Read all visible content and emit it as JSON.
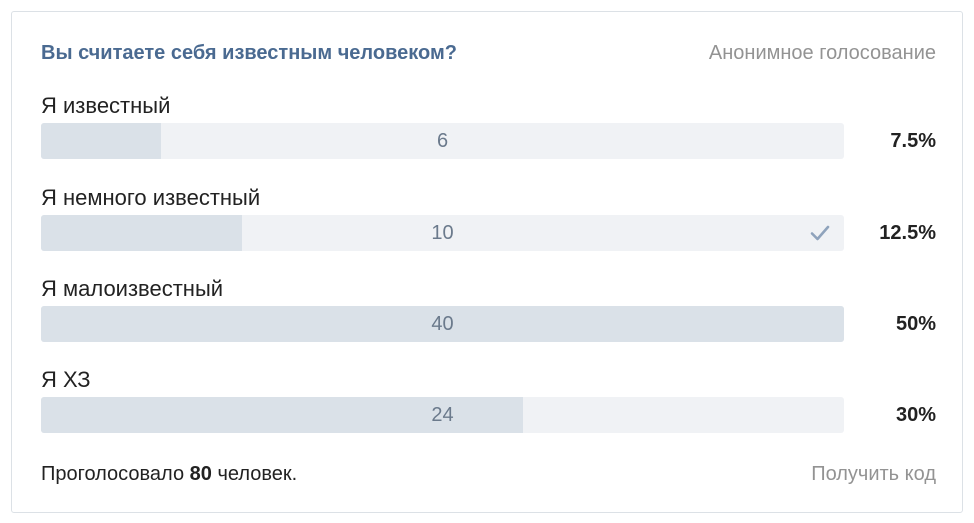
{
  "poll": {
    "question": "Вы считаете себя известным человеком?",
    "type": "Анонимное голосование",
    "options": [
      {
        "label": "Я известный",
        "count": "6",
        "percent": "7.5%",
        "fill": 0.15,
        "voted": false
      },
      {
        "label": "Я немного известный",
        "count": "10",
        "percent": "12.5%",
        "fill": 0.25,
        "voted": true
      },
      {
        "label": "Я малоизвестный",
        "count": "40",
        "percent": "50%",
        "fill": 1.0,
        "voted": false
      },
      {
        "label": "Я ХЗ",
        "count": "24",
        "percent": "30%",
        "fill": 0.6,
        "voted": false
      }
    ],
    "footer": {
      "voted_prefix": "Проголосовало",
      "total": "80",
      "voted_suffix": "человек.",
      "get_code": "Получить код"
    }
  },
  "colors": {
    "question": "#4a6a91",
    "track": "#f0f2f5",
    "fill": "#dae1e8",
    "muted": "#939393",
    "check": "#8fa3bc"
  },
  "icons": {
    "voted": "check-icon"
  }
}
